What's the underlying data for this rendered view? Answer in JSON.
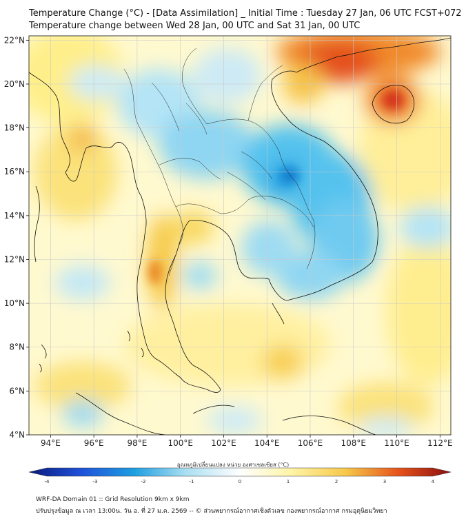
{
  "header": {
    "title_line1": "Temperature Change (°C) - [Data Assimilation] _ Initial Time : Tuesday 27 Jan, 06 UTC FCST+072",
    "title_line2": "Temperature change between Wed 28 Jan, 00 UTC and Sat 31 Jan, 00 UTC"
  },
  "map": {
    "lat_labels": [
      "22°N",
      "20°N",
      "18°N",
      "16°N",
      "14°N",
      "12°N",
      "10°N",
      "8°N",
      "6°N",
      "4°N"
    ],
    "lon_labels": [
      "94°E",
      "96°E",
      "98°E",
      "100°E",
      "102°E",
      "104°E",
      "106°E",
      "108°E",
      "110°E",
      "112°E"
    ],
    "lat_values": [
      22,
      20,
      18,
      16,
      14,
      12,
      10,
      8,
      6,
      4
    ],
    "lon_values": [
      94,
      96,
      98,
      100,
      102,
      104,
      106,
      108,
      110,
      112
    ],
    "lon_range": [
      93,
      112.5
    ],
    "lat_range": [
      4,
      22.2
    ]
  },
  "colorbar": {
    "label": "อุณหภูมิเปลี่ยนแปลง หน่วย องศาเซลเซียส (°C)",
    "tick_labels": [
      "-4",
      "-3",
      "-2",
      "-1",
      "0",
      "1",
      "2",
      "3",
      "4"
    ],
    "tick_values": [
      -4,
      -3,
      -2,
      -1,
      0,
      1,
      2,
      3,
      4
    ],
    "range": [
      -4,
      4
    ]
  },
  "footer": {
    "line1": "WRF-DA Domain 01 :: Grid Resolution 9km x 9km",
    "line2": "ปรับปรุงข้อมูล ณ เวลา 13:00น. วัน อ. ที่ 27 ม.ค. 2569 -- © ส่วนพยากรณ์อากาศเชิงตัวเลข กองพยากรณ์อากาศ กรมอุตุนิยมวิทยา"
  },
  "colors": {
    "strong_cold": "#0a1f8c",
    "cold": "#1e9fe0",
    "light_cold": "#a8def2",
    "neutral": "#ffffff",
    "light_warm": "#fff4a8",
    "warm": "#f6c94a",
    "hot": "#e4501c",
    "strong_hot": "#8a0e0e"
  }
}
